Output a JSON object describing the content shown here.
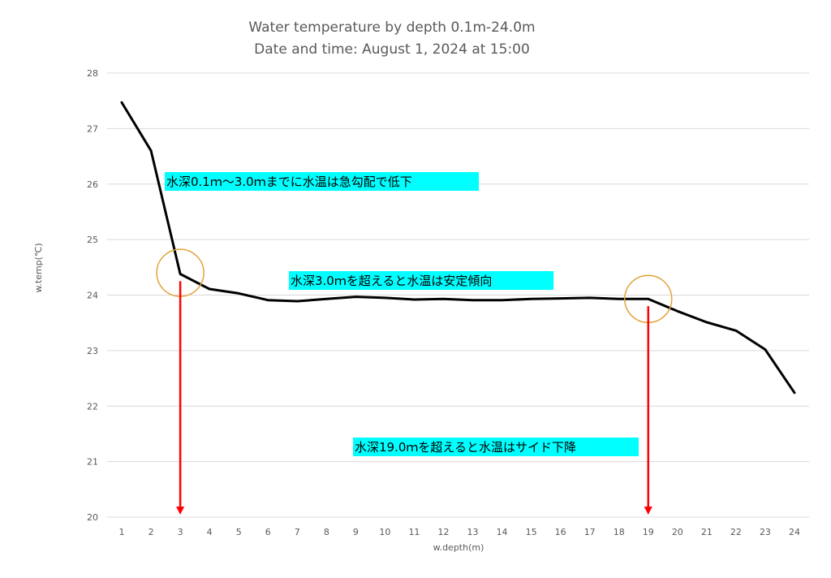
{
  "chart_data": {
    "type": "line",
    "title": "Water temperature by depth 0.1m-24.0m",
    "subtitle": "Date and time: August 1, 2024 at 15:00",
    "xlabel": "w.depth(m)",
    "ylabel": "w.temp(℃)",
    "ylim": [
      20,
      28
    ],
    "yticks": [
      "20",
      "21",
      "22",
      "23",
      "24",
      "25",
      "26",
      "27",
      "28"
    ],
    "categories": [
      "1",
      "2",
      "3",
      "4",
      "5",
      "6",
      "7",
      "8",
      "9",
      "10",
      "11",
      "12",
      "13",
      "14",
      "15",
      "16",
      "17",
      "18",
      "19",
      "20",
      "21",
      "22",
      "23",
      "24"
    ],
    "values": [
      27.47,
      26.6,
      24.38,
      24.11,
      24.03,
      23.91,
      23.89,
      23.93,
      23.97,
      23.95,
      23.92,
      23.93,
      23.91,
      23.91,
      23.93,
      23.94,
      23.95,
      23.93,
      23.93,
      23.71,
      23.51,
      23.36,
      23.02,
      22.24
    ],
    "grid": true,
    "line_color": "#000000",
    "annotations": [
      {
        "text": "水深0.1ｍ～3.0ｍまでに水温は急勾配で低下",
        "bg": "#00ffff"
      },
      {
        "text": "水深3.0ｍを超えると水温は安定傾向",
        "bg": "#00ffff"
      },
      {
        "text": "水深19.0ｍを超えると水温はサイド下降",
        "bg": "#00ffff"
      }
    ],
    "markers": [
      {
        "type": "circle",
        "x": 3,
        "y": 24.4,
        "color": "#e4a23b"
      },
      {
        "type": "circle",
        "x": 19,
        "y": 23.93,
        "color": "#e4a23b"
      },
      {
        "type": "arrow",
        "x": 3,
        "from_y": 24.25,
        "to_y": 20,
        "color": "#ff0000"
      },
      {
        "type": "arrow",
        "x": 19,
        "from_y": 23.8,
        "to_y": 20,
        "color": "#ff0000"
      }
    ]
  }
}
